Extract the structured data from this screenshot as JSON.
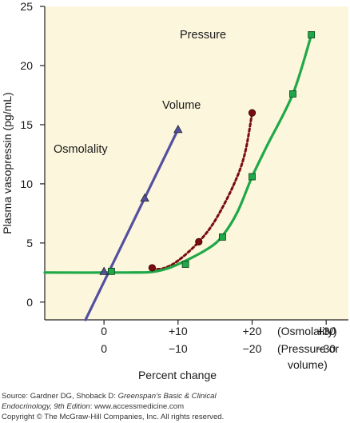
{
  "chart_data": {
    "type": "line",
    "title": "",
    "ylabel": "Plasma vasopressin (pg/mL)",
    "xlabel": "Percent change",
    "ylim": [
      -1.5,
      25
    ],
    "xlim": [
      -8,
      33
    ],
    "yticks": [
      0,
      5,
      10,
      15,
      20,
      25
    ],
    "xticks": [
      {
        "value": 0,
        "osm": "0",
        "press": "0"
      },
      {
        "value": 10,
        "osm": "+10",
        "press": "−10"
      },
      {
        "value": 20,
        "osm": "+20",
        "press": "−20"
      },
      {
        "value": 30,
        "osm": "+30",
        "press": "−30"
      }
    ],
    "xtick_row_labels": {
      "osmolality": "(Osmolality)",
      "pressure_1": "(Pressure or",
      "pressure_2": "volume)"
    },
    "background": "#fbf6dc",
    "series": [
      {
        "name": "Osmolality",
        "color": "#5450a0",
        "style": "solid",
        "marker": "triangle",
        "line": [
          [
            -2.5,
            -1.5
          ],
          [
            10,
            14.6
          ]
        ],
        "points": [
          [
            0,
            2.6
          ],
          [
            5.5,
            8.8
          ],
          [
            10,
            14.6
          ]
        ]
      },
      {
        "name": "Volume",
        "color": "#7a0c10",
        "style": "dotted",
        "marker": "circle",
        "line": [
          [
            6.5,
            2.8
          ],
          [
            8,
            2.85
          ],
          [
            10,
            3.5
          ],
          [
            12.8,
            5.1
          ],
          [
            15,
            6.9
          ],
          [
            17.5,
            9.9
          ],
          [
            19,
            12.5
          ],
          [
            20,
            16
          ]
        ],
        "points": [
          [
            6.5,
            2.9
          ],
          [
            12.8,
            5.1
          ],
          [
            20,
            16
          ]
        ]
      },
      {
        "name": "Pressure",
        "color": "#1fa848",
        "style": "solid",
        "marker": "square",
        "line": [
          [
            -8,
            2.5
          ],
          [
            3,
            2.5
          ],
          [
            7,
            2.6
          ],
          [
            10,
            3.2
          ],
          [
            14,
            4.5
          ],
          [
            16,
            5.6
          ],
          [
            18,
            7.6
          ],
          [
            20,
            10.6
          ],
          [
            22,
            13.2
          ],
          [
            25.5,
            17.6
          ],
          [
            28,
            22.6
          ]
        ],
        "points": [
          [
            1,
            2.6
          ],
          [
            11,
            3.2
          ],
          [
            16,
            5.5
          ],
          [
            20,
            10.6
          ],
          [
            25.5,
            17.6
          ],
          [
            28,
            22.6
          ]
        ]
      }
    ]
  },
  "credits": {
    "source_prefix": "Source: Gardner DG, Shoback D: ",
    "source_title": "Greenspan’s Basic & Clinical",
    "line2_title": "Endocrinology, 9th Edition",
    "line2_rest": ": www.accessmedicine.com",
    "copyright": "Copyright © The McGraw-Hill Companies, Inc. All rights reserved."
  }
}
